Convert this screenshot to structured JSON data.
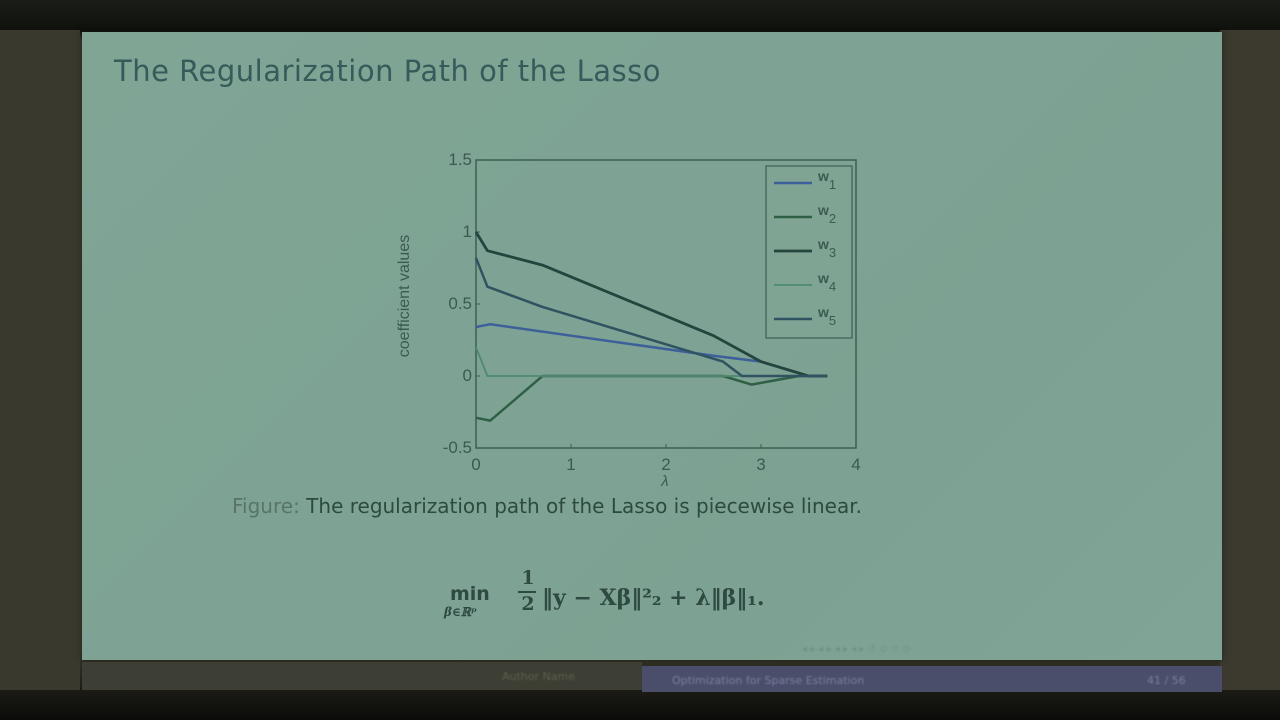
{
  "slide": {
    "title": "The Regularization Path of the Lasso",
    "caption_prefix": "Figure:",
    "caption_text": "The regularization path of the Lasso is piecewise linear.",
    "formula": {
      "min_label": "min",
      "min_subscript": "β∈ℝᵖ",
      "frac_num": "1",
      "frac_den": "2",
      "expression": "‖y − Xβ‖²₂ + λ‖β‖₁."
    },
    "nav_symbols": "◂ ▸ ◂ ▸ ◂ ▸ ◂ ▸   ↺   ⊙ ⊙ ⊙",
    "footer": {
      "author": "Author Name",
      "talk_title": "Optimization for Sparse Estimation",
      "page": "41 / 56"
    }
  },
  "chart_data": {
    "type": "line",
    "title": "",
    "xlabel": "λ",
    "ylabel": "coefficient values",
    "xlim": [
      0,
      4
    ],
    "ylim": [
      -0.5,
      1.5
    ],
    "xticks": [
      0,
      1,
      2,
      3,
      4
    ],
    "yticks": [
      -0.5,
      0,
      0.5,
      1,
      1.5
    ],
    "yticklabels": [
      "-0.5",
      "0",
      "0.5",
      "1",
      "1.5"
    ],
    "grid": false,
    "legend_position": "upper right",
    "series": [
      {
        "name": "w1",
        "color": "#3d5f9a",
        "width": 2.5,
        "x": [
          0,
          0.15,
          2.5,
          3.0,
          3.5,
          3.7
        ],
        "y": [
          0.34,
          0.36,
          0.14,
          0.1,
          0.0,
          0.0
        ]
      },
      {
        "name": "w2",
        "color": "#2f6046",
        "width": 2.5,
        "x": [
          0,
          0.15,
          0.7,
          2.6,
          2.9,
          3.4,
          3.7
        ],
        "y": [
          -0.29,
          -0.31,
          0.0,
          0.0,
          -0.06,
          0.0,
          0.0
        ]
      },
      {
        "name": "w3",
        "color": "#24443d",
        "width": 2.8,
        "x": [
          0,
          0.12,
          0.7,
          2.5,
          3.0,
          3.5,
          3.7
        ],
        "y": [
          1.0,
          0.87,
          0.77,
          0.28,
          0.1,
          0.0,
          0.0
        ]
      },
      {
        "name": "w4",
        "color": "#4e8a72",
        "width": 1.8,
        "x": [
          0,
          0.12,
          3.7
        ],
        "y": [
          0.2,
          0.0,
          0.0
        ]
      },
      {
        "name": "w5",
        "color": "#2f5360",
        "width": 2.5,
        "x": [
          0,
          0.12,
          0.7,
          2.6,
          2.8,
          3.7
        ],
        "y": [
          0.82,
          0.62,
          0.48,
          0.1,
          0.0,
          0.0
        ]
      }
    ]
  }
}
